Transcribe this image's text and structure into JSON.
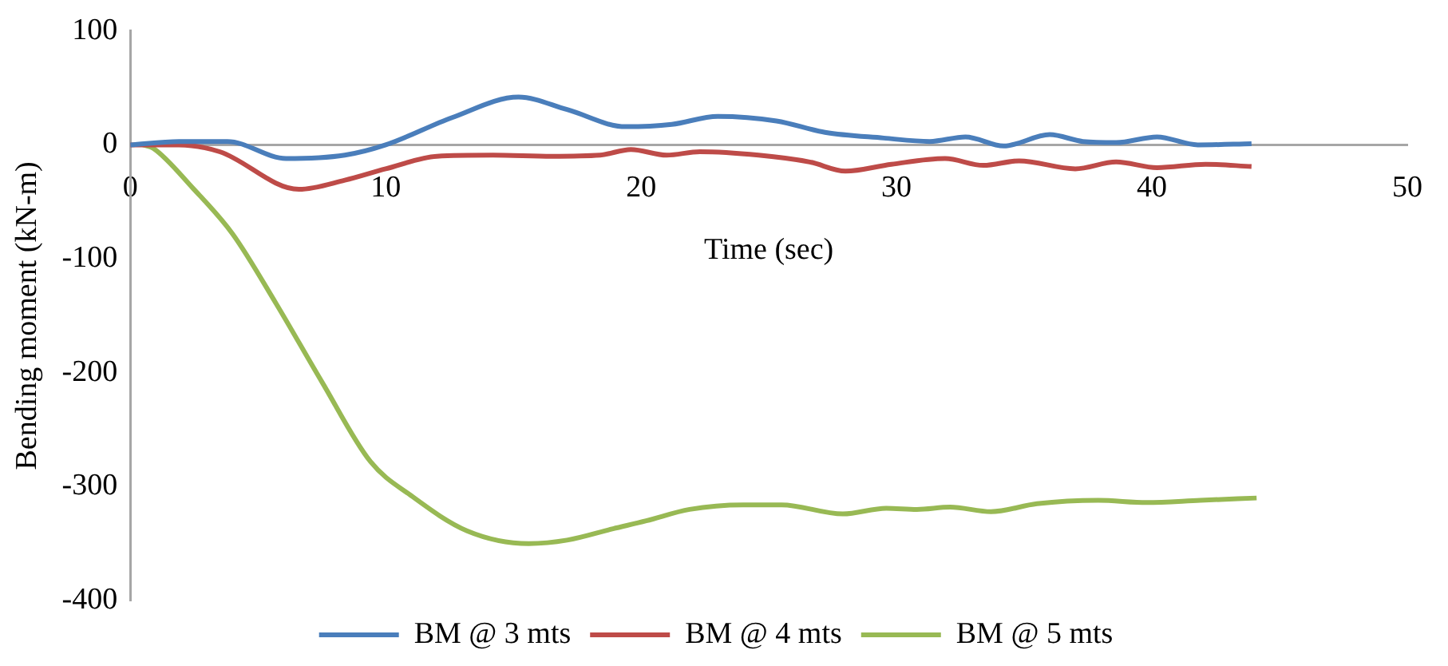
{
  "chart_data": {
    "type": "line",
    "xlabel": "Time (sec)",
    "ylabel": "Bending moment (kN-m)",
    "xlim": [
      0,
      50
    ],
    "xticks": [
      0,
      10,
      20,
      30,
      40,
      50
    ],
    "ylim": [
      -400,
      100
    ],
    "yticks": [
      -400,
      -300,
      -200,
      -100,
      0,
      100
    ],
    "grid": false,
    "legend": "bottom",
    "marker": "none",
    "line_style": "solid",
    "series": [
      {
        "name": "BM @ 3 mts",
        "color": "#4a7ebb",
        "x": [
          0,
          1.9,
          3.8,
          6.1,
          8.4,
          10,
          12.6,
          15.2,
          17.1,
          19.4,
          21.2,
          23,
          25.3,
          27.2,
          29.5,
          31.3,
          32.7,
          34.2,
          36,
          37.3,
          38.6,
          40.2,
          41.8,
          43.9
        ],
        "values": [
          0,
          3,
          3,
          -12,
          -9,
          0,
          24,
          42,
          31,
          16,
          18,
          25,
          21,
          11,
          6,
          3,
          7,
          -1,
          9,
          3,
          2,
          7,
          0,
          1
        ]
      },
      {
        "name": "BM @ 4 mts",
        "color": "#be4b48",
        "x": [
          0,
          1.9,
          3.5,
          6.6,
          8.4,
          10,
          12,
          14.2,
          16.5,
          18.4,
          19.6,
          21,
          22.3,
          24.6,
          26.6,
          28,
          29.8,
          31.9,
          33.4,
          34.8,
          37,
          38.6,
          40.2,
          42.1,
          43.9
        ],
        "values": [
          0,
          0,
          -6,
          -39,
          -31,
          -21,
          -10,
          -9,
          -10,
          -9,
          -4,
          -9,
          -6,
          -9,
          -15,
          -23,
          -17,
          -12,
          -18,
          -14,
          -21,
          -15,
          -20,
          -17,
          -19
        ]
      },
      {
        "name": "BM @ 5 mts",
        "color": "#98b954",
        "x": [
          0.5,
          0.9,
          2.45,
          4,
          5.7,
          7.5,
          9.4,
          11,
          13.2,
          15.6,
          17.1,
          18.9,
          20.2,
          21.9,
          24,
          25.5,
          27.9,
          29.6,
          30.8,
          32.1,
          33.7,
          35.5,
          37.9,
          39.8,
          41.9,
          44.1
        ],
        "values": [
          0,
          -3,
          -38,
          -78,
          -139,
          -208,
          -278,
          -308,
          -339,
          -350,
          -347,
          -337,
          -330,
          -320,
          -316,
          -316,
          -324,
          -319,
          -320,
          -318,
          -322,
          -315,
          -312,
          -314,
          -312,
          -310
        ]
      }
    ]
  }
}
